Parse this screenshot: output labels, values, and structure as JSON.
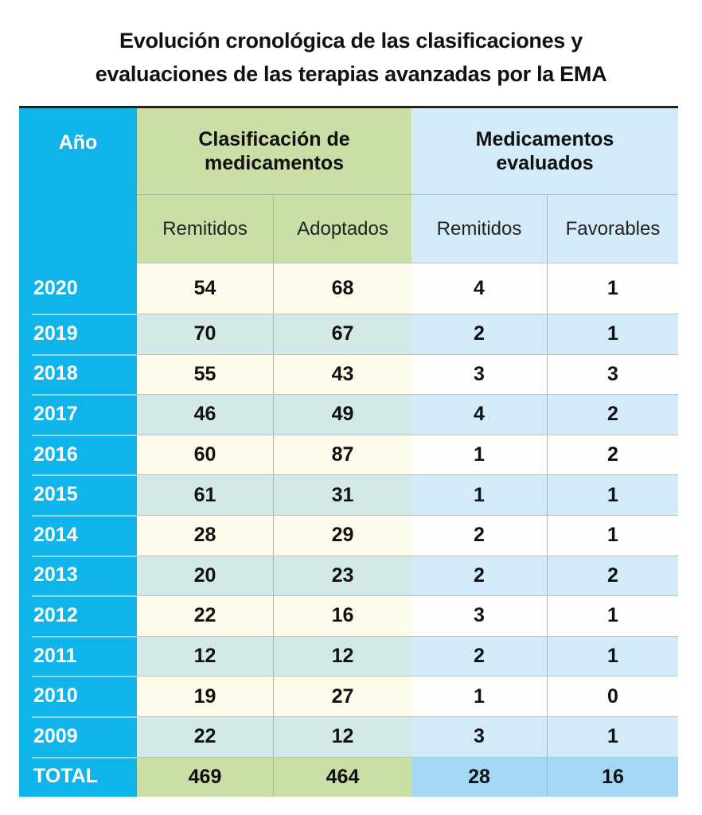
{
  "title": [
    "Evolución cronológica de las clasificaciones y",
    "evaluaciones de las terapias avanzadas por la EMA"
  ],
  "header": {
    "year": "Año",
    "group1": "Clasificación de medicamentos",
    "group2": "Medicamentos evaluados",
    "sub": [
      "Remitidos",
      "Adoptados",
      "Remitidos",
      "Favorables"
    ]
  },
  "colors": {
    "year_column": "#0fb4ea",
    "group1": "#c9dfa6",
    "group2": "#d3eaf8",
    "total_group2": "#a3d7f3"
  },
  "chart_data": {
    "type": "table",
    "columns": [
      "Año",
      "Clasificación de medicamentos – Remitidos",
      "Clasificación de medicamentos – Adoptados",
      "Medicamentos evaluados – Remitidos",
      "Medicamentos evaluados – Favorables"
    ],
    "rows": [
      [
        "2020",
        "54",
        "68",
        "4",
        "1"
      ],
      [
        "2019",
        "70",
        "67",
        "2",
        "1"
      ],
      [
        "2018",
        "55",
        "43",
        "3",
        "3"
      ],
      [
        "2017",
        "46",
        "49",
        "4",
        "2"
      ],
      [
        "2016",
        "60",
        "87",
        "1",
        "2"
      ],
      [
        "2015",
        "61",
        "31",
        "1",
        "1"
      ],
      [
        "2014",
        "28",
        "29",
        "2",
        "1"
      ],
      [
        "2013",
        "20",
        "23",
        "2",
        "2"
      ],
      [
        "2012",
        "22",
        "16",
        "3",
        "1"
      ],
      [
        "2011",
        "12",
        "12",
        "2",
        "1"
      ],
      [
        "2010",
        "19",
        "27",
        "1",
        "0"
      ],
      [
        "2009",
        "22",
        "12",
        "3",
        "1"
      ]
    ],
    "total": [
      "TOTAL",
      "469",
      "464",
      "28",
      "16"
    ]
  }
}
